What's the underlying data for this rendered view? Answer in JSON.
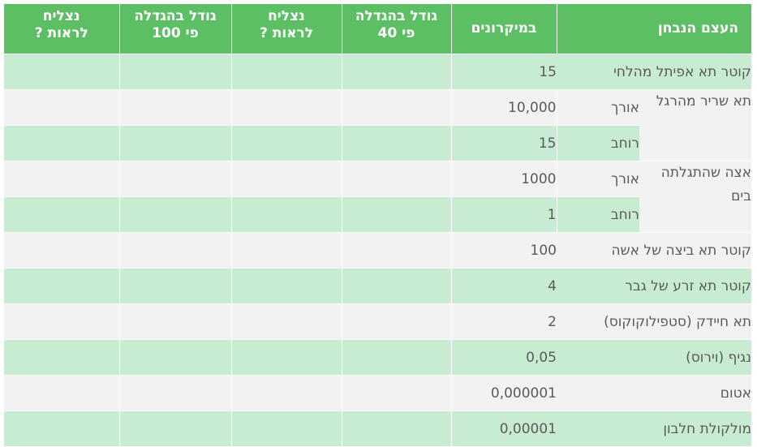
{
  "headers": {
    "object": "העצם הנבחן",
    "microns": "במיקרונים",
    "size40_line1": "גודל בהגדלה",
    "size40_line2": "פי 40",
    "see40_line1": "נצליח",
    "see40_line2": "לראות ?",
    "size100_line1": "גודל בהגדלה",
    "size100_line2": "פי 100",
    "see100_line1": "נצליח",
    "see100_line2": "לראות ?"
  },
  "rows": {
    "r0": {
      "name": "קוטר תא אפיתל מהלחי",
      "value": "15"
    },
    "muscle": {
      "name": "תא שריר מהרגל",
      "length_label": "אורך",
      "length_value": "10,000",
      "width_label": "רוחב",
      "width_value": "15"
    },
    "pollen": {
      "name": "אצה שהתגלתה בים",
      "length_label": "אורך",
      "length_value": "1000",
      "width_label": "רוחב",
      "width_value": "1"
    },
    "r5": {
      "name": "קוטר תא ביצה של אשה",
      "value": "100"
    },
    "r6": {
      "name": "קוטר תא זרע של גבר",
      "value": "4"
    },
    "r7": {
      "name": "תא חיידק (סטפילוקוקוס)",
      "value": "2"
    },
    "r8": {
      "name": "נגיף (וירוס)",
      "value": "0,05"
    },
    "r9": {
      "name": "אטום",
      "value": "0,000001"
    },
    "r10": {
      "name": "מולקולת חלבון",
      "value": "0,00001"
    }
  },
  "colors": {
    "header_green": "#5cbf63",
    "row_green": "#c7ecd1",
    "row_gray": "#f2f2f2",
    "text_gray": "#5a5a5a"
  }
}
